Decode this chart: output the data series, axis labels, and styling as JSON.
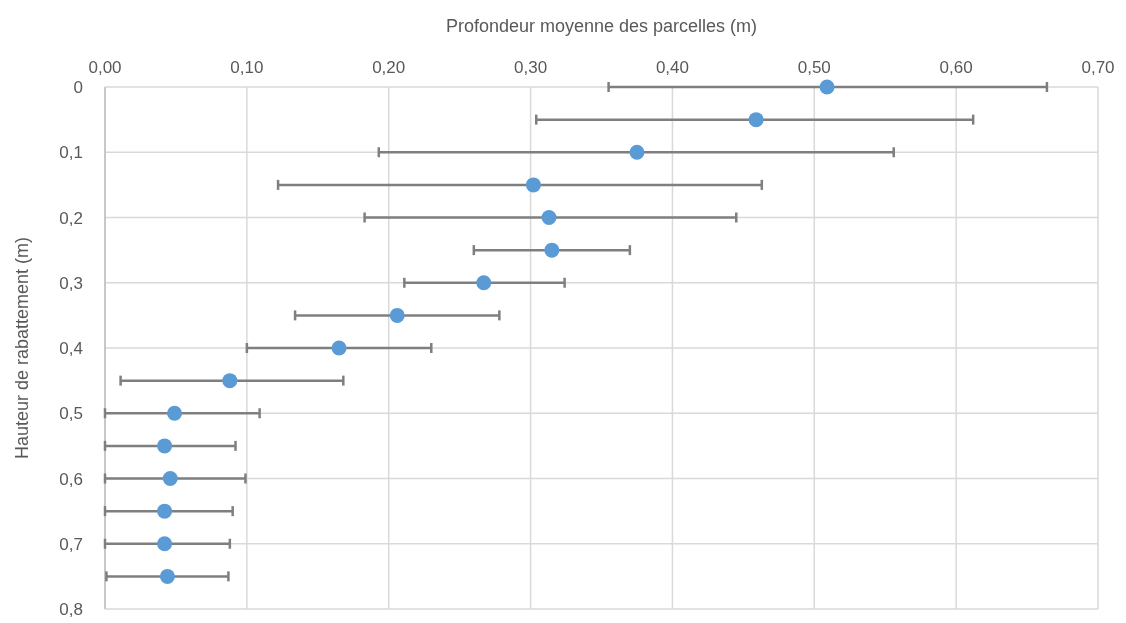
{
  "chart_data": {
    "type": "scatter",
    "xlabel": "Profondeur moyenne des parcelles (m)",
    "ylabel": "Hauteur de rabattement (m)",
    "x": [
      0.509,
      0.459,
      0.375,
      0.302,
      0.313,
      0.315,
      0.267,
      0.206,
      0.165,
      0.088,
      0.049,
      0.042,
      0.046,
      0.042,
      0.042,
      0.044
    ],
    "values": [
      0,
      0.05,
      0.1,
      0.15,
      0.2,
      0.25,
      0.3,
      0.35,
      0.4,
      0.45,
      0.5,
      0.55,
      0.6,
      0.65,
      0.7,
      0.75
    ],
    "xerrors": [
      [
        0.355,
        0.664
      ],
      [
        0.304,
        0.612
      ],
      [
        0.193,
        0.556
      ],
      [
        0.122,
        0.463
      ],
      [
        0.183,
        0.445
      ],
      [
        0.26,
        0.37
      ],
      [
        0.211,
        0.324
      ],
      [
        0.134,
        0.278
      ],
      [
        0.1,
        0.23
      ],
      [
        0.011,
        0.168
      ],
      [
        0,
        0.109
      ],
      [
        0,
        0.092
      ],
      [
        0,
        0.099
      ],
      [
        0,
        0.09
      ],
      [
        0,
        0.088
      ],
      [
        0.001,
        0.087
      ]
    ],
    "color": "#5b9bd5",
    "marker": "circle",
    "grid": true,
    "xlim": [
      0,
      0.7
    ],
    "xticks": [
      {
        "value": 0,
        "label": "0,00"
      },
      {
        "value": 0.1,
        "label": "0,10"
      },
      {
        "value": 0.2,
        "label": "0,20"
      },
      {
        "value": 0.3,
        "label": "0,30"
      },
      {
        "value": 0.4,
        "label": "0,40"
      },
      {
        "value": 0.5,
        "label": "0,50"
      },
      {
        "value": 0.6,
        "label": "0,60"
      },
      {
        "value": 0.7,
        "label": "0,70"
      }
    ],
    "ylim": [
      0.8,
      0
    ],
    "yticks": [
      0,
      {
        "value": 0.1,
        "label": "0,1"
      },
      {
        "value": 0.2,
        "label": "0,2"
      },
      {
        "value": 0.3,
        "label": "0,3"
      },
      {
        "value": 0.4,
        "label": "0,4"
      },
      {
        "value": 0.5,
        "label": "0,5"
      },
      {
        "value": 0.6,
        "label": "0,6"
      },
      {
        "value": 0.7,
        "label": "0,7"
      },
      {
        "value": 0.8,
        "label": "0,8"
      }
    ]
  }
}
